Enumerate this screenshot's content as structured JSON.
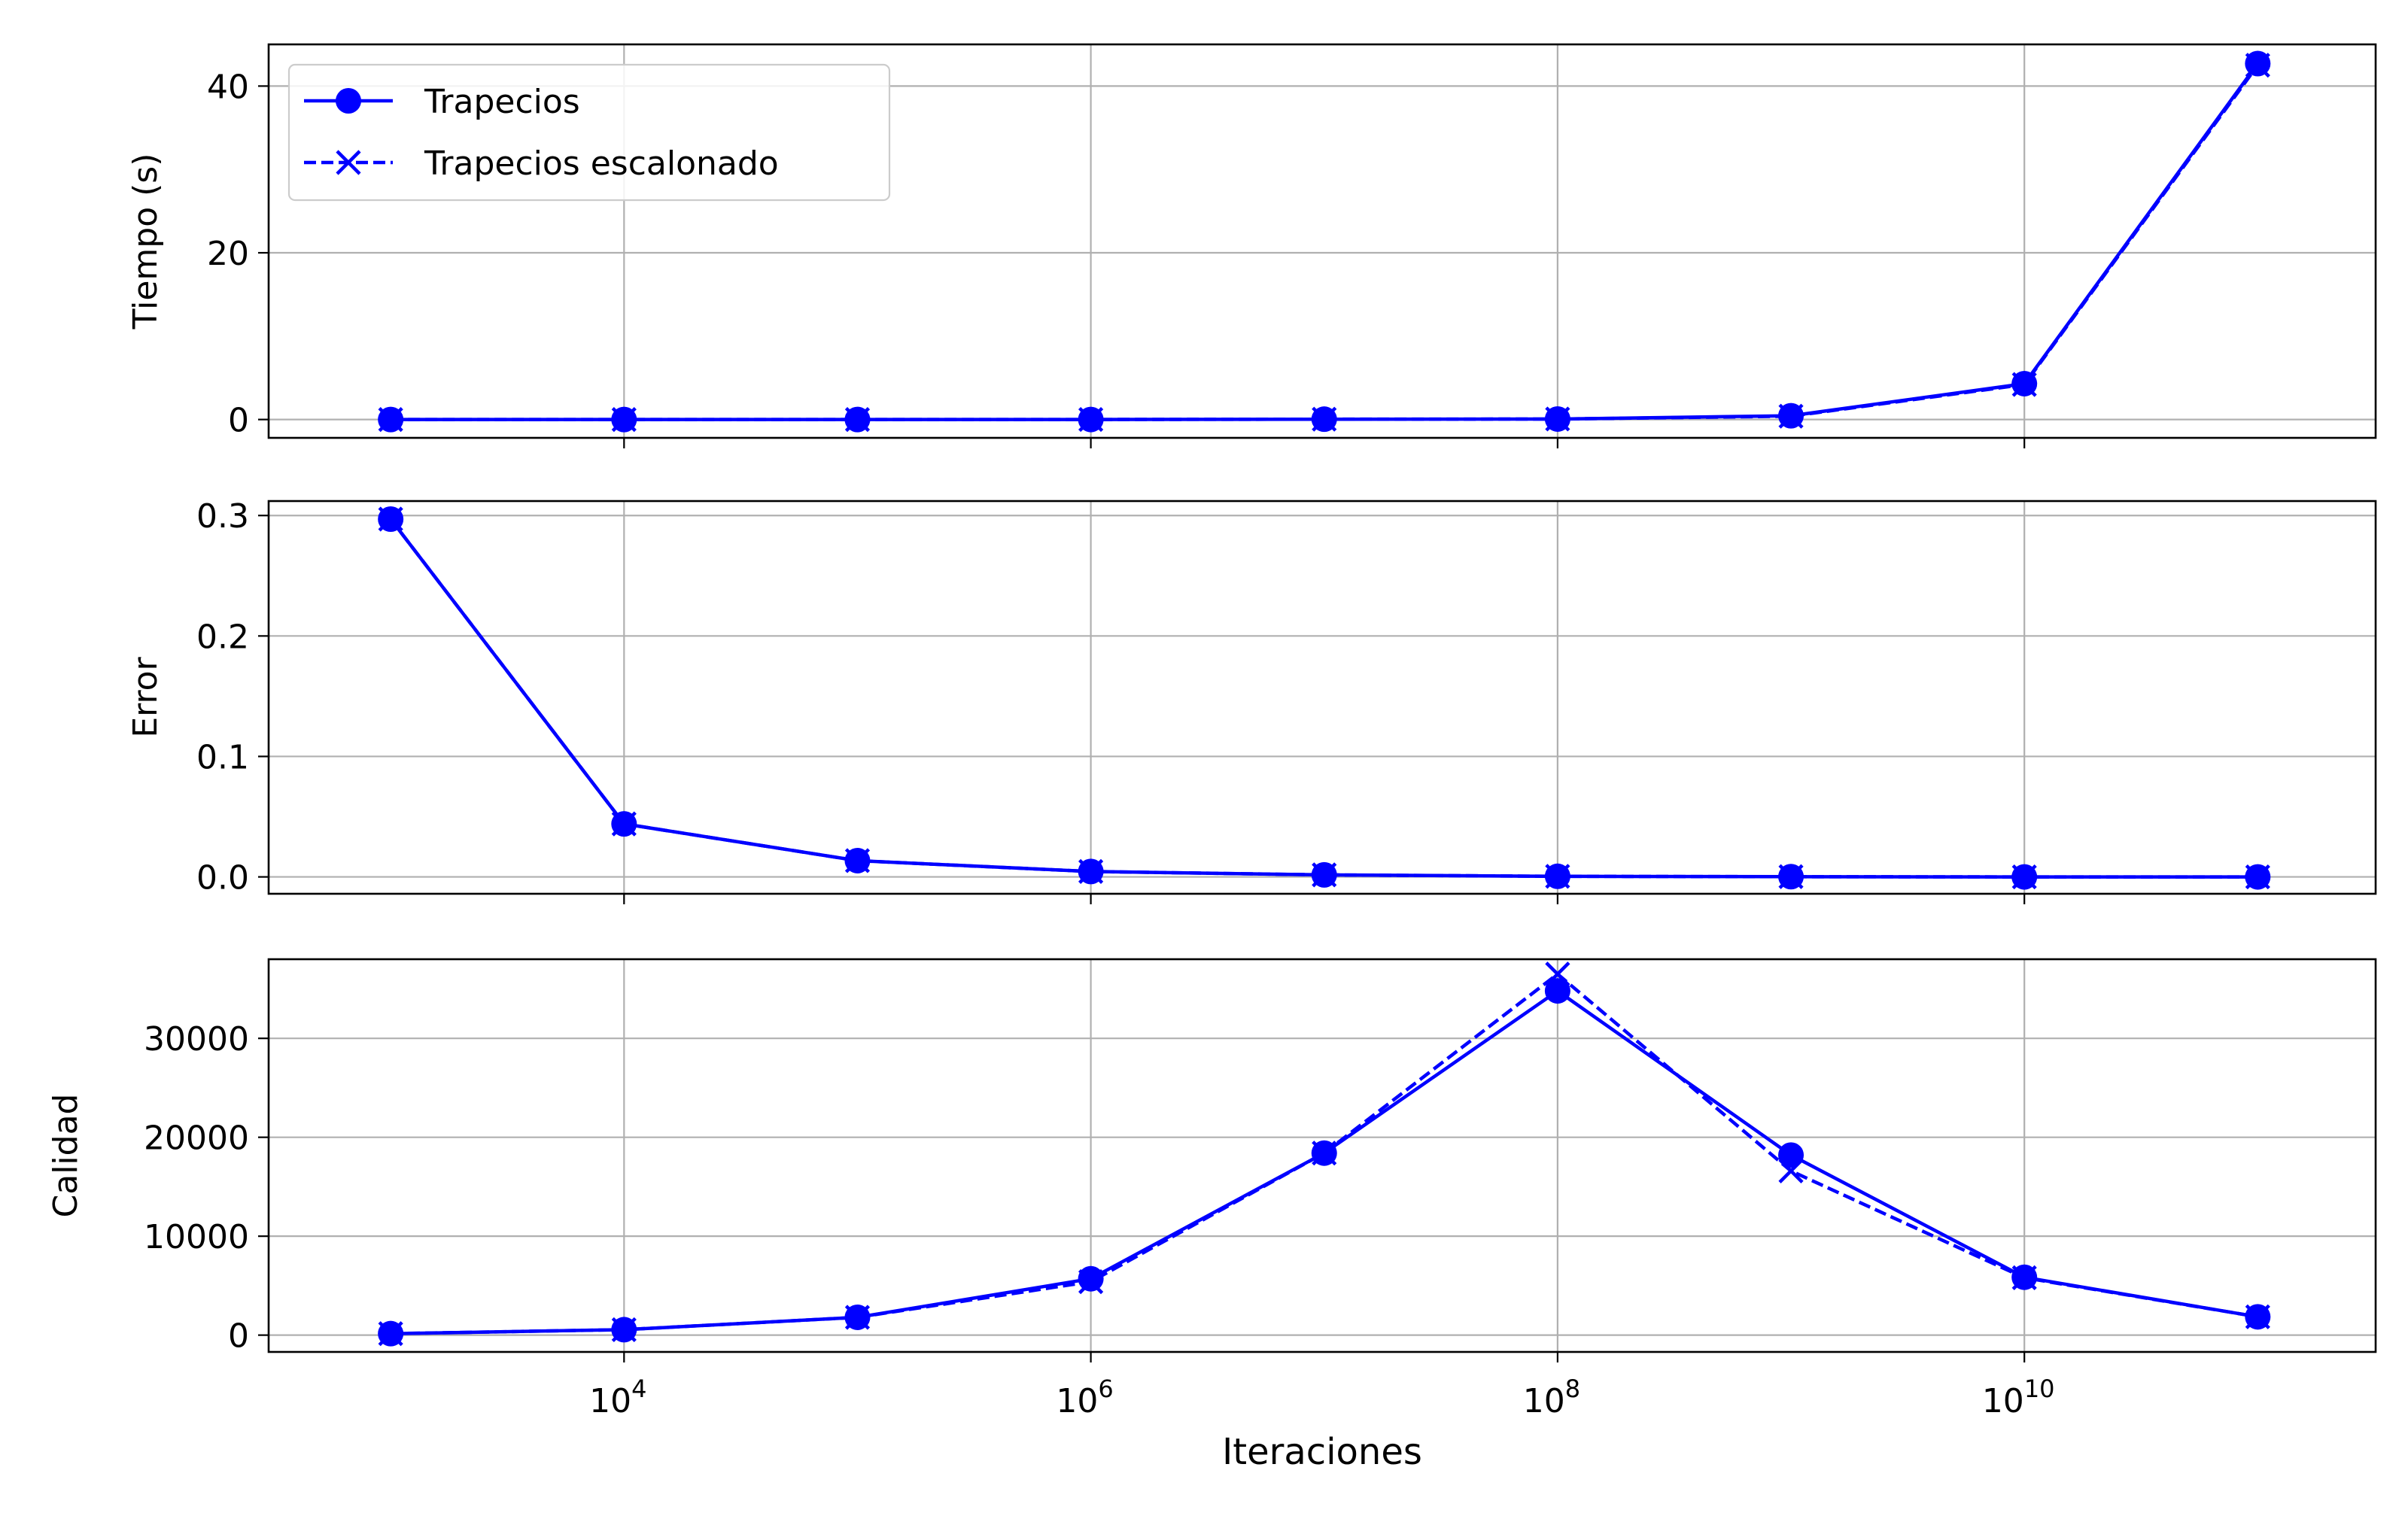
{
  "figure": {
    "xlabel": "Iteraciones",
    "x_ticks": [
      {
        "base": "10",
        "exp": "4",
        "value": 10000
      },
      {
        "base": "10",
        "exp": "6",
        "value": 1000000
      },
      {
        "base": "10",
        "exp": "8",
        "value": 100000000
      },
      {
        "base": "10",
        "exp": "10",
        "value": 10000000000
      }
    ],
    "legend": {
      "placement": "top-left of first panel",
      "entries": [
        "Trapecios",
        "Trapecios escalonado"
      ]
    },
    "colors": {
      "line": "#0000ff",
      "grid": "#b0b0b0",
      "axes": "#000000"
    }
  },
  "chart_data": [
    {
      "type": "line",
      "xscale": "log",
      "xlim": [
        300,
        320000000000
      ],
      "ylim": [
        -2.2,
        45
      ],
      "xlabel": "",
      "ylabel": "Tiempo (s)",
      "grid": true,
      "yticks": [
        0,
        20,
        40
      ],
      "ytick_labels": [
        "0",
        "20",
        "40"
      ],
      "x": [
        1000,
        10000,
        100000,
        1000000,
        10000000,
        100000000,
        1000000000,
        10000000000,
        100000000000
      ],
      "series": [
        {
          "name": "Trapecios",
          "style": "solid",
          "marker": "circle",
          "values": [
            0.0,
            0.0,
            0.0,
            0.005,
            0.04,
            0.06,
            0.45,
            4.3,
            42.7
          ]
        },
        {
          "name": "Trapecios escalonado",
          "style": "dashed",
          "marker": "x",
          "values": [
            0.0,
            0.0,
            0.0,
            0.005,
            0.04,
            0.06,
            0.4,
            4.2,
            42.5
          ]
        }
      ]
    },
    {
      "type": "line",
      "xscale": "log",
      "xlim": [
        300,
        320000000000
      ],
      "ylim": [
        -0.014,
        0.312
      ],
      "xlabel": "",
      "ylabel": "Error",
      "grid": true,
      "yticks": [
        0,
        0.1,
        0.2,
        0.3
      ],
      "ytick_labels": [
        "0.0",
        "0.1",
        "0.2",
        "0.3"
      ],
      "x": [
        1000,
        10000,
        100000,
        1000000,
        10000000,
        100000000,
        1000000000,
        10000000000,
        100000000000
      ],
      "series": [
        {
          "name": "Trapecios",
          "style": "solid",
          "marker": "circle",
          "values": [
            0.297,
            0.044,
            0.0135,
            0.0045,
            0.0017,
            0.0005,
            0.0002,
            0.0,
            0.0
          ]
        },
        {
          "name": "Trapecios escalonado",
          "style": "dashed",
          "marker": "x",
          "values": [
            0.297,
            0.044,
            0.0135,
            0.0045,
            0.0017,
            0.0005,
            0.0002,
            0.0,
            0.0
          ]
        }
      ]
    },
    {
      "type": "line",
      "xscale": "log",
      "xlim": [
        300,
        320000000000
      ],
      "ylim": [
        -1700,
        38000
      ],
      "xlabel": "Iteraciones",
      "ylabel": "Calidad",
      "grid": true,
      "yticks": [
        0,
        10000,
        20000,
        30000
      ],
      "ytick_labels": [
        "0",
        "10000",
        "20000",
        "30000"
      ],
      "x": [
        1000,
        10000,
        100000,
        1000000,
        10000000,
        100000000,
        1000000000,
        10000000000,
        100000000000
      ],
      "series": [
        {
          "name": "Trapecios",
          "style": "solid",
          "marker": "circle",
          "values": [
            150,
            550,
            1800,
            5700,
            18400,
            34800,
            18200,
            5850,
            1850
          ]
        },
        {
          "name": "Trapecios escalonado",
          "style": "dashed",
          "marker": "x",
          "values": [
            150,
            550,
            1800,
            5400,
            18400,
            36500,
            16600,
            5800,
            1850
          ]
        }
      ]
    }
  ]
}
